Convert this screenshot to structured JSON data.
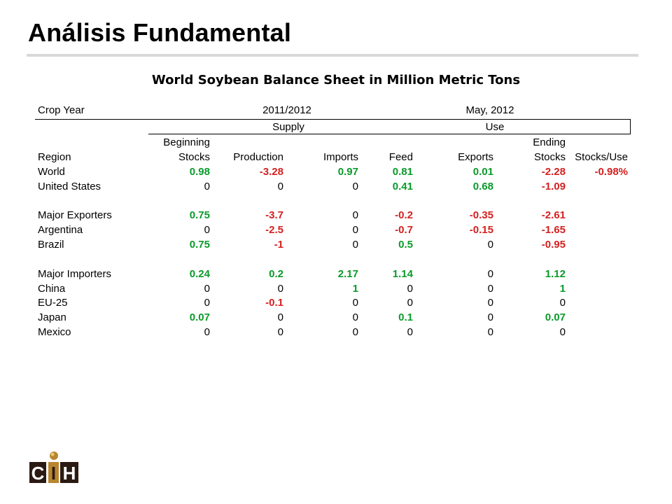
{
  "slide": {
    "title": "Análisis Fundamental"
  },
  "sheet": {
    "title": "World Soybean Balance Sheet in Million Metric Tons",
    "crop_year_label": "Crop Year",
    "year_value": "2011/2012",
    "report_date": "May, 2012",
    "group_supply": "Supply",
    "group_use": "Use",
    "header_top": {
      "beginning": "Beginning",
      "ending": "Ending"
    },
    "columns": [
      "Region",
      "Stocks",
      "Production",
      "Imports",
      "Feed",
      "Exports",
      "Stocks",
      "Stocks/Use"
    ],
    "rows": [
      {
        "region": "World",
        "values": [
          "0.98",
          "-3.28",
          "0.97",
          "0.81",
          "0.01",
          "-2.28",
          "-0.98%"
        ],
        "colors": [
          "pos",
          "neg",
          "pos",
          "pos",
          "pos",
          "neg",
          "neg"
        ]
      },
      {
        "region": "United States",
        "values": [
          "0",
          "0",
          "0",
          "0.41",
          "0.68",
          "-1.09",
          ""
        ],
        "colors": [
          "zero",
          "zero",
          "zero",
          "pos",
          "pos",
          "neg",
          "zero"
        ]
      },
      {
        "region": "Major Exporters",
        "values": [
          "0.75",
          "-3.7",
          "0",
          "-0.2",
          "-0.35",
          "-2.61",
          ""
        ],
        "colors": [
          "pos",
          "neg",
          "zero",
          "neg",
          "neg",
          "neg",
          "zero"
        ]
      },
      {
        "region": "Argentina",
        "values": [
          "0",
          "-2.5",
          "0",
          "-0.7",
          "-0.15",
          "-1.65",
          ""
        ],
        "colors": [
          "zero",
          "neg",
          "zero",
          "neg",
          "neg",
          "neg",
          "zero"
        ]
      },
      {
        "region": "Brazil",
        "values": [
          "0.75",
          "-1",
          "0",
          "0.5",
          "0",
          "-0.95",
          ""
        ],
        "colors": [
          "pos",
          "neg",
          "zero",
          "pos",
          "zero",
          "neg",
          "zero"
        ]
      },
      {
        "region": "Major Importers",
        "values": [
          "0.24",
          "0.2",
          "2.17",
          "1.14",
          "0",
          "1.12",
          ""
        ],
        "colors": [
          "pos",
          "pos",
          "pos",
          "pos",
          "zero",
          "pos",
          "zero"
        ]
      },
      {
        "region": "China",
        "values": [
          "0",
          "0",
          "1",
          "0",
          "0",
          "1",
          ""
        ],
        "colors": [
          "zero",
          "zero",
          "pos",
          "zero",
          "zero",
          "pos",
          "zero"
        ]
      },
      {
        "region": "EU-25",
        "values": [
          "0",
          "-0.1",
          "0",
          "0",
          "0",
          "0",
          ""
        ],
        "colors": [
          "zero",
          "neg",
          "zero",
          "zero",
          "zero",
          "zero",
          "zero"
        ]
      },
      {
        "region": "Japan",
        "values": [
          "0.07",
          "0",
          "0",
          "0.1",
          "0",
          "0.07",
          ""
        ],
        "colors": [
          "pos",
          "zero",
          "zero",
          "pos",
          "zero",
          "pos",
          "zero"
        ]
      },
      {
        "region": "Mexico",
        "values": [
          "0",
          "0",
          "0",
          "0",
          "0",
          "0",
          ""
        ],
        "colors": [
          "zero",
          "zero",
          "zero",
          "zero",
          "zero",
          "zero",
          "zero"
        ]
      }
    ]
  },
  "logo": {
    "text": "CIH",
    "colors": {
      "dark": "#2a1a12",
      "gold": "#b8862e"
    }
  },
  "colors": {
    "positive": "#0a9a2a",
    "negative": "#d42020",
    "rule": "#d9d9d9"
  }
}
